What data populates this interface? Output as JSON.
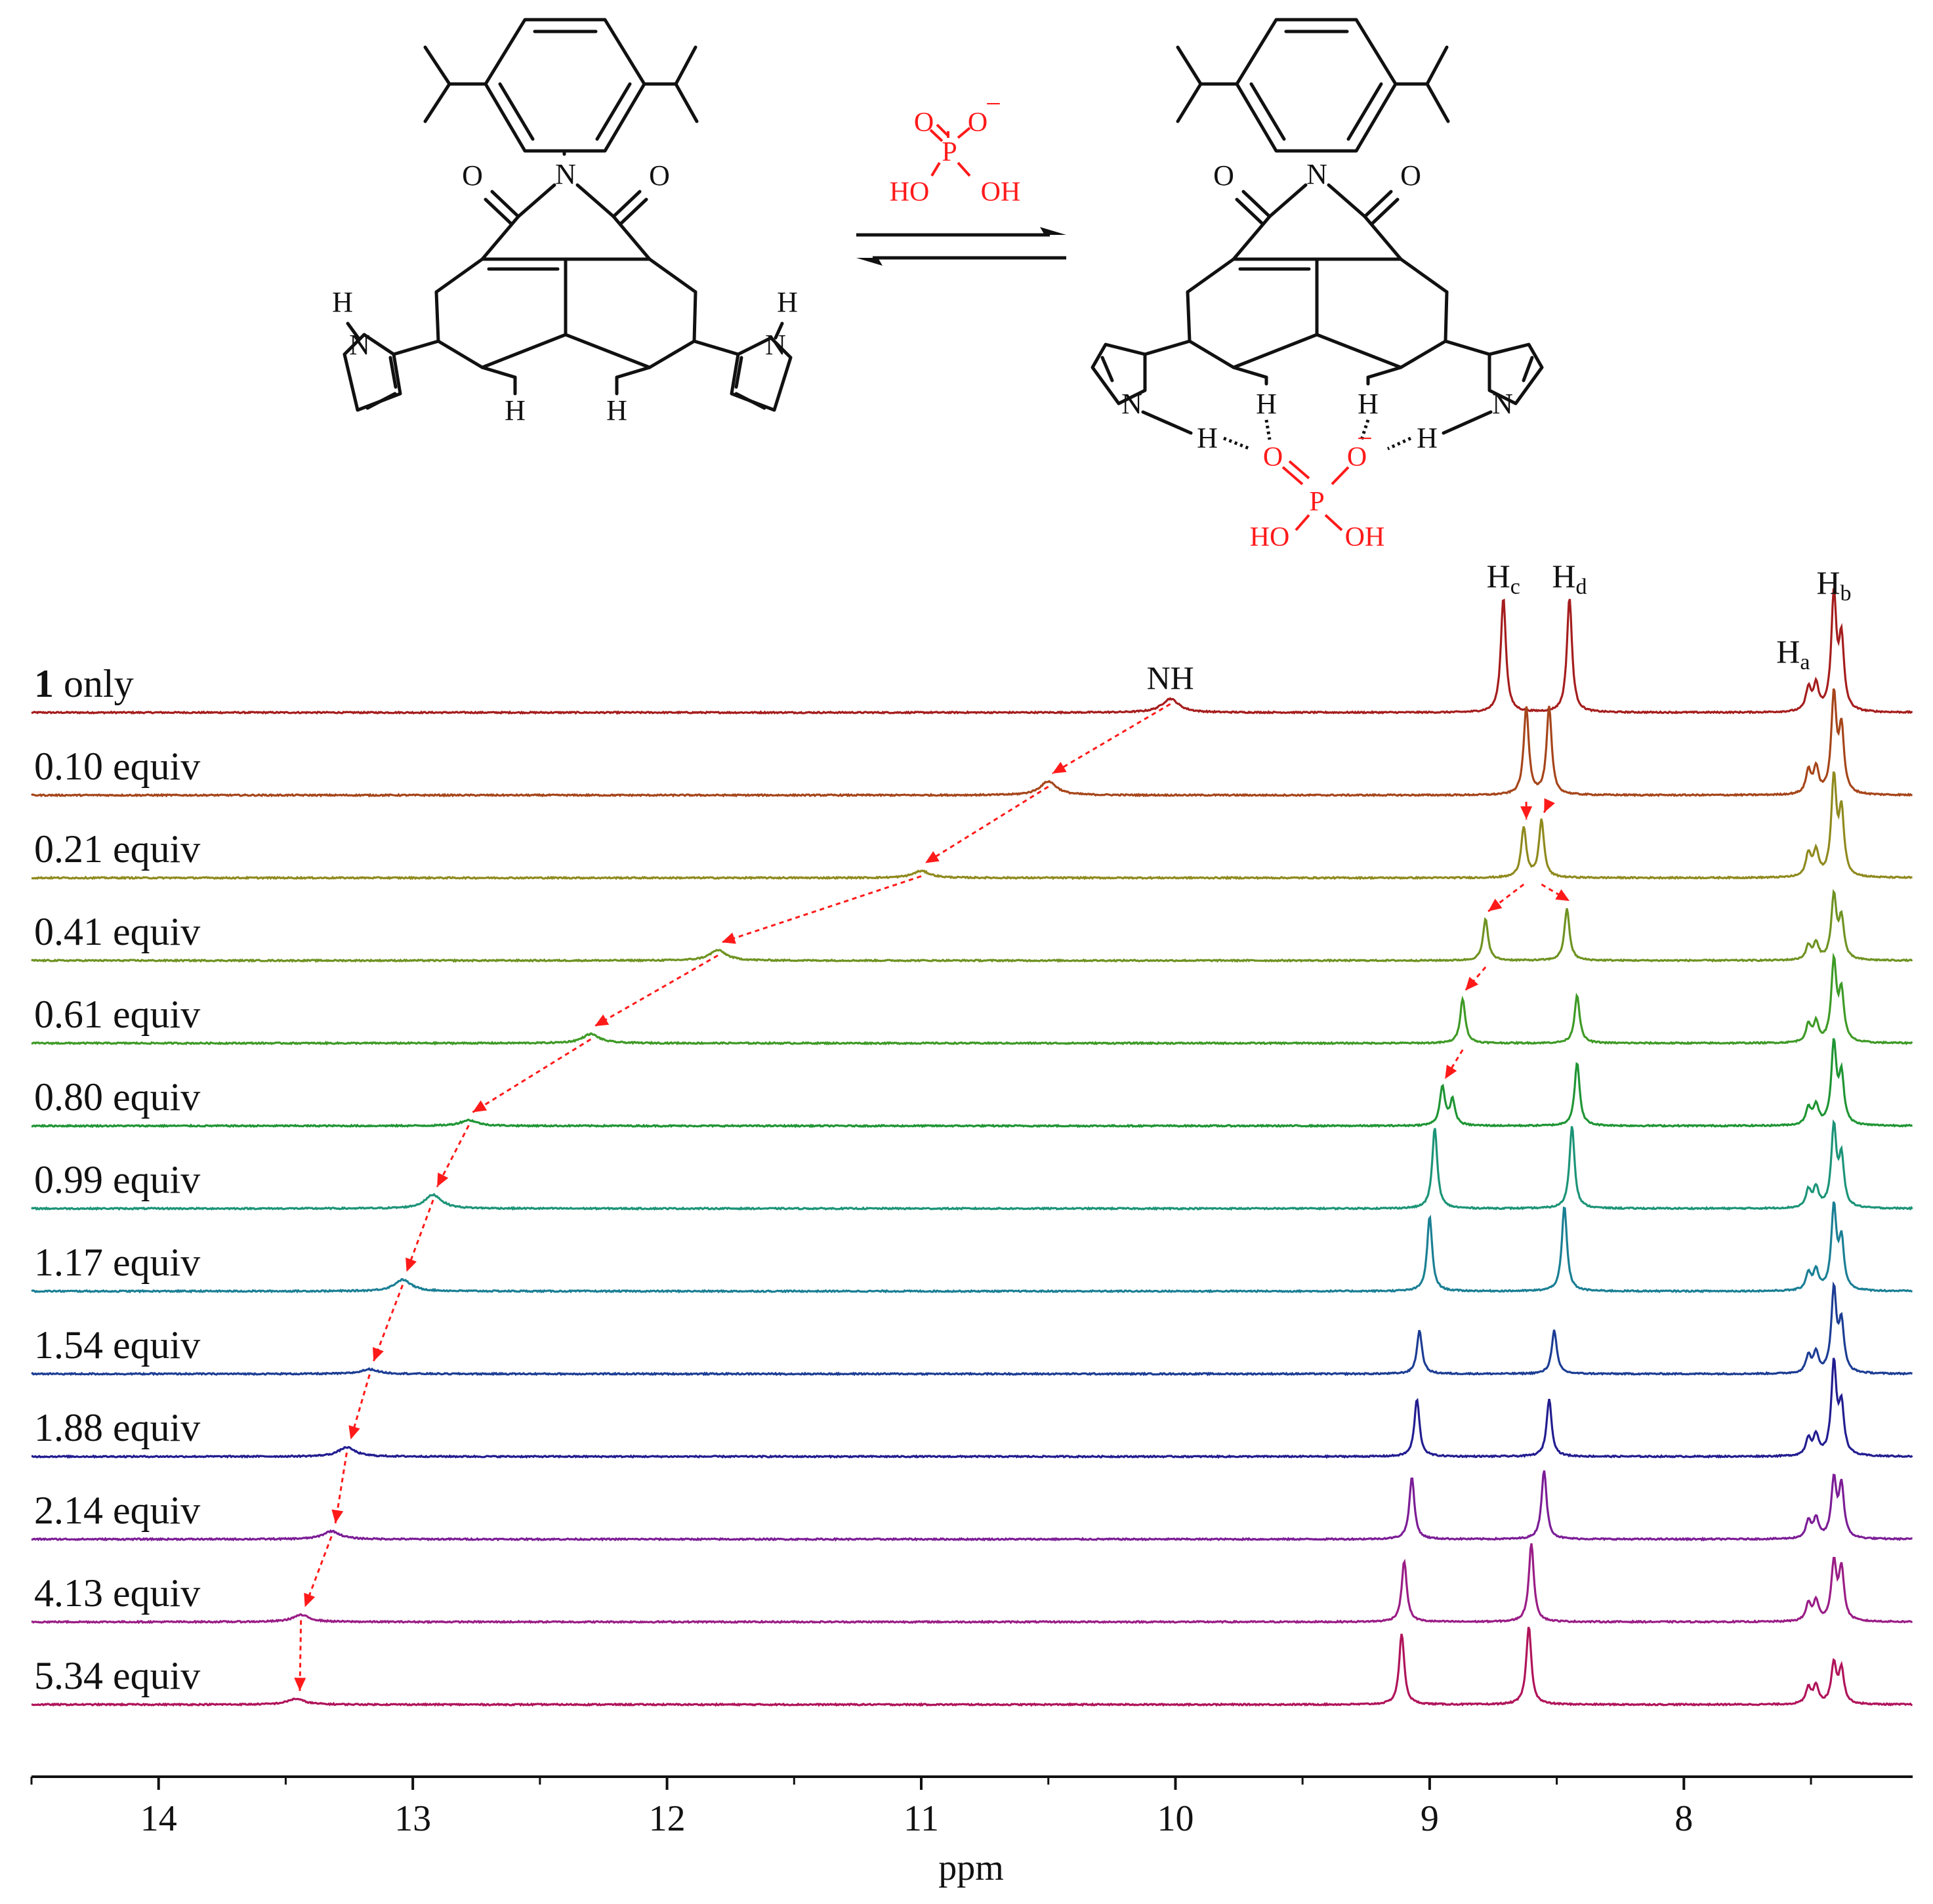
{
  "scheme": {
    "left": {
      "N_imide": "N",
      "O_left": "O",
      "O_right": "O",
      "NH_left_N": "N",
      "NH_left_H": "H",
      "NH_right_N": "N",
      "NH_right_H": "H",
      "H_inner_left": "H",
      "H_inner_right": "H"
    },
    "right": {
      "N_imide": "N",
      "O_left": "O",
      "O_right": "O",
      "N_left": "N",
      "N_right": "N",
      "H_inner_left": "H",
      "H_inner_right": "H",
      "H_nh_left": "H",
      "H_nh_right": "H",
      "O_bound_left": "O",
      "O_bound_right": "O",
      "O_bound_minus": "−",
      "P": "P",
      "HO": "HO",
      "OH": "OH"
    },
    "reagent": {
      "O_top": "O",
      "O_right": "O",
      "minus": "−",
      "P": "P",
      "HO": "HO",
      "OH": "OH"
    },
    "colors": {
      "structure": "#111111",
      "phosphate": "#ff1a1a"
    }
  },
  "chart_data": {
    "type": "line",
    "xlabel": "ppm",
    "xlim": [
      14.5,
      7.1
    ],
    "x_reversed": true,
    "x_ticks": [
      "14",
      "13",
      "12",
      "11",
      "10",
      "9",
      "8"
    ],
    "peak_labels": {
      "NH": "NH",
      "Hc": {
        "main": "H",
        "sub": "c"
      },
      "Hd": {
        "main": "H",
        "sub": "d"
      },
      "Ha": {
        "main": "H",
        "sub": "a"
      },
      "Hb": {
        "main": "H",
        "sub": "b"
      }
    },
    "trace_labels": [
      {
        "bold": "1",
        "text": " only"
      },
      {
        "text": "0.10 equiv"
      },
      {
        "text": "0.21 equiv"
      },
      {
        "text": "0.41 equiv"
      },
      {
        "text": "0.61 equiv"
      },
      {
        "text": "0.80 equiv"
      },
      {
        "text": "0.99 equiv"
      },
      {
        "text": "1.17 equiv"
      },
      {
        "text": "1.54 equiv"
      },
      {
        "text": "1.88 equiv"
      },
      {
        "text": "2.14 equiv"
      },
      {
        "text": "4.13 equiv"
      },
      {
        "text": "5.34 equiv"
      }
    ],
    "series": [
      {
        "equiv": 0.0,
        "color": "#a51d1d",
        "nh": [
          10.02,
          0.12
        ],
        "peaks": [
          [
            8.71,
            1.0
          ],
          [
            8.45,
            1.0
          ],
          [
            7.51,
            0.2
          ],
          [
            7.48,
            0.22
          ],
          [
            7.41,
            1.0
          ],
          [
            7.38,
            0.6
          ]
        ]
      },
      {
        "equiv": 0.1,
        "color": "#a6451a",
        "nh": [
          10.5,
          0.12
        ],
        "peaks": [
          [
            8.62,
            0.76
          ],
          [
            8.53,
            0.76
          ],
          [
            7.51,
            0.2
          ],
          [
            7.48,
            0.22
          ],
          [
            7.41,
            0.85
          ],
          [
            7.38,
            0.55
          ]
        ]
      },
      {
        "equiv": 0.21,
        "color": "#8f8a1e",
        "nh": [
          11.0,
          0.06
        ],
        "peaks": [
          [
            8.63,
            0.44
          ],
          [
            8.56,
            0.5
          ],
          [
            7.51,
            0.2
          ],
          [
            7.48,
            0.22
          ],
          [
            7.41,
            0.85
          ],
          [
            7.38,
            0.55
          ]
        ]
      },
      {
        "equiv": 0.41,
        "color": "#6f9322",
        "nh": [
          11.8,
          0.09
        ],
        "peaks": [
          [
            8.78,
            0.36
          ],
          [
            8.46,
            0.45
          ],
          [
            7.51,
            0.12
          ],
          [
            7.48,
            0.14
          ],
          [
            7.41,
            0.55
          ],
          [
            7.38,
            0.35
          ]
        ]
      },
      {
        "equiv": 0.61,
        "color": "#3e9a26",
        "nh": [
          12.3,
          0.08
        ],
        "peaks": [
          [
            8.87,
            0.39
          ],
          [
            8.42,
            0.42
          ],
          [
            7.51,
            0.15
          ],
          [
            7.48,
            0.17
          ],
          [
            7.41,
            0.7
          ],
          [
            7.38,
            0.42
          ]
        ]
      },
      {
        "equiv": 0.8,
        "color": "#1f9534",
        "nh": [
          12.78,
          0.05
        ],
        "peaks": [
          [
            8.95,
            0.34
          ],
          [
            8.91,
            0.22
          ],
          [
            8.42,
            0.55
          ],
          [
            7.51,
            0.15
          ],
          [
            7.48,
            0.17
          ],
          [
            7.41,
            0.7
          ],
          [
            7.38,
            0.42
          ]
        ]
      },
      {
        "equiv": 0.99,
        "color": "#1c9478",
        "nh": [
          12.92,
          0.12
        ],
        "peaks": [
          [
            8.98,
            0.7
          ],
          [
            8.44,
            0.72
          ],
          [
            7.51,
            0.15
          ],
          [
            7.48,
            0.17
          ],
          [
            7.41,
            0.7
          ],
          [
            7.38,
            0.42
          ]
        ]
      },
      {
        "equiv": 1.17,
        "color": "#1a7f94",
        "nh": [
          13.04,
          0.1
        ],
        "peaks": [
          [
            9.0,
            0.65
          ],
          [
            8.47,
            0.74
          ],
          [
            7.51,
            0.15
          ],
          [
            7.48,
            0.17
          ],
          [
            7.41,
            0.72
          ],
          [
            7.38,
            0.42
          ]
        ]
      },
      {
        "equiv": 1.54,
        "color": "#1c3d94",
        "nh": [
          13.17,
          0.04
        ],
        "peaks": [
          [
            9.04,
            0.38
          ],
          [
            8.51,
            0.38
          ],
          [
            7.51,
            0.15
          ],
          [
            7.48,
            0.17
          ],
          [
            7.41,
            0.72
          ],
          [
            7.38,
            0.42
          ]
        ]
      },
      {
        "equiv": 1.88,
        "color": "#221d90",
        "nh": [
          13.26,
          0.08
        ],
        "peaks": [
          [
            9.05,
            0.5
          ],
          [
            8.53,
            0.5
          ],
          [
            7.51,
            0.15
          ],
          [
            7.48,
            0.17
          ],
          [
            7.41,
            0.8
          ],
          [
            7.38,
            0.42
          ]
        ]
      },
      {
        "equiv": 2.14,
        "color": "#7c1d96",
        "nh": [
          13.32,
          0.07
        ],
        "peaks": [
          [
            9.07,
            0.54
          ],
          [
            8.55,
            0.6
          ],
          [
            7.51,
            0.15
          ],
          [
            7.48,
            0.17
          ],
          [
            7.41,
            0.5
          ],
          [
            7.38,
            0.45
          ]
        ]
      },
      {
        "equiv": 4.13,
        "color": "#9a1d86",
        "nh": [
          13.44,
          0.06
        ],
        "peaks": [
          [
            9.1,
            0.53
          ],
          [
            8.6,
            0.68
          ],
          [
            7.51,
            0.15
          ],
          [
            7.48,
            0.17
          ],
          [
            7.41,
            0.5
          ],
          [
            7.38,
            0.45
          ]
        ]
      },
      {
        "equiv": 5.34,
        "color": "#b0145a",
        "nh": [
          13.46,
          0.05
        ],
        "peaks": [
          [
            9.11,
            0.62
          ],
          [
            8.61,
            0.68
          ],
          [
            7.51,
            0.14
          ],
          [
            7.48,
            0.16
          ],
          [
            7.41,
            0.35
          ],
          [
            7.38,
            0.3
          ]
        ]
      }
    ]
  }
}
